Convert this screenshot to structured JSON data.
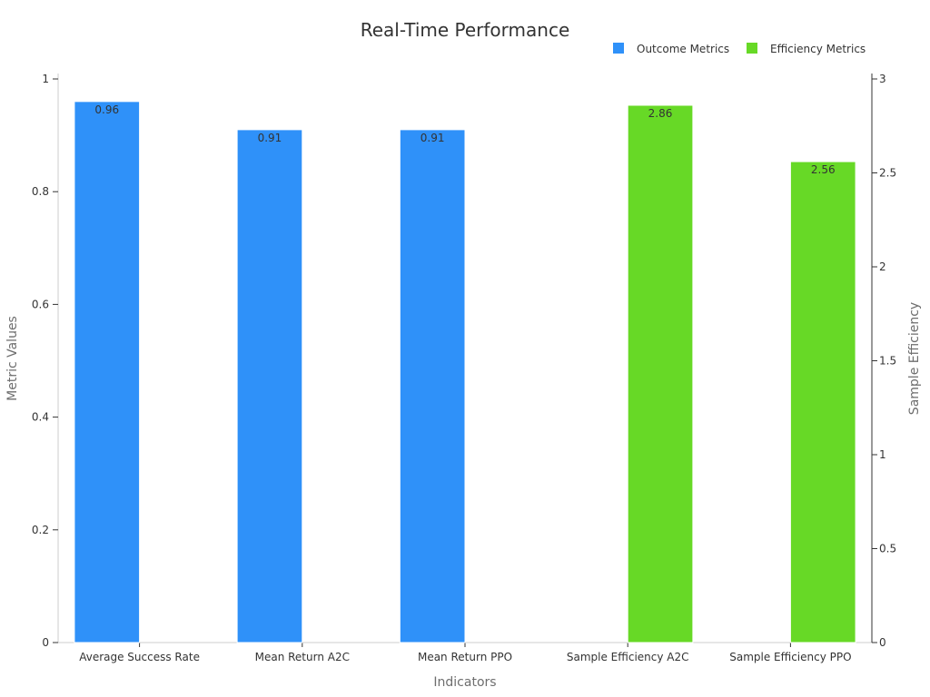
{
  "chart_data": {
    "type": "bar",
    "title": "Real-Time Performance",
    "xlabel": "Indicators",
    "ylabel": "Metric Values",
    "y2label": "Sample Efficiency",
    "categories": [
      "Average Success Rate",
      "Mean Return A2C",
      "Mean Return PPO",
      "Sample Efficiency A2C",
      "Sample Efficiency PPO"
    ],
    "ylim": [
      0,
      1
    ],
    "y2lim": [
      0,
      3
    ],
    "yticks": [
      0,
      0.2,
      0.4,
      0.6,
      0.8,
      1
    ],
    "ytick_labels": [
      "0",
      "0.2",
      "0.4",
      "0.6",
      "0.8",
      "1"
    ],
    "y2ticks": [
      0,
      0.5,
      1,
      1.5,
      2,
      2.5,
      3
    ],
    "y2tick_labels": [
      "0",
      "0.5",
      "1",
      "1.5",
      "2",
      "2.5",
      "3"
    ],
    "legend_position": "top-right",
    "series": [
      {
        "name": "Outcome Metrics",
        "axis": "left",
        "color": "#2f91f9",
        "values": [
          0.96,
          0.91,
          0.91,
          null,
          null
        ],
        "labels": [
          "0.96",
          "0.91",
          "0.91",
          "",
          ""
        ]
      },
      {
        "name": "Efficiency Metrics",
        "axis": "right",
        "color": "#67d926",
        "values": [
          null,
          null,
          null,
          2.86,
          2.56
        ],
        "labels": [
          "",
          "",
          "",
          "2.86",
          "2.56"
        ]
      }
    ]
  }
}
